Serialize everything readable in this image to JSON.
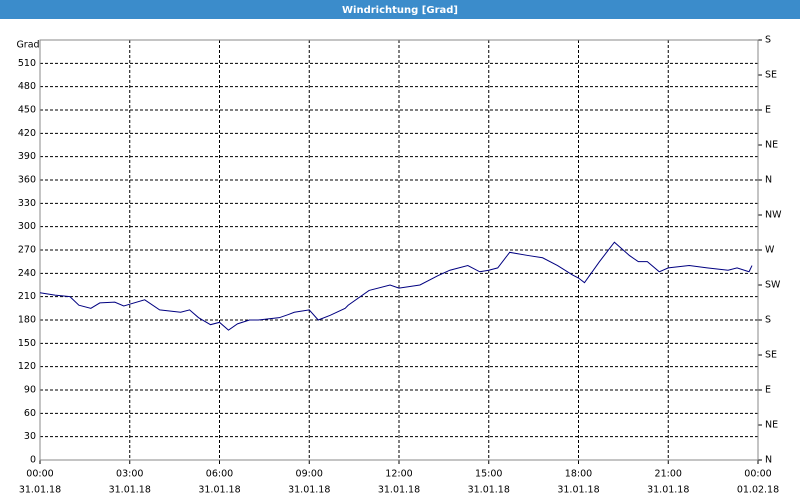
{
  "window_title": "Windrichtung [Grad]",
  "chart_data": {
    "type": "line",
    "ylabel": "Grad",
    "x": [
      0,
      0.5,
      1,
      1.3,
      1.7,
      2,
      2.5,
      2.8,
      3.5,
      4,
      4.7,
      5,
      5.3,
      5.7,
      6,
      6.3,
      6.6,
      7,
      7.3,
      8,
      8.3,
      8.5,
      9,
      9.3,
      9.7,
      10.2,
      10.3,
      11,
      11.7,
      12,
      12.7,
      13.3,
      13.7,
      14.3,
      14.7,
      15,
      15.3,
      15.7,
      16.3,
      16.8,
      17.3,
      17.8,
      18,
      18.2,
      18.7,
      19.2,
      19.7,
      20,
      20.3,
      20.7,
      21,
      21.7,
      22.3,
      23,
      23.3,
      23.7,
      23.8
    ],
    "series": [
      {
        "name": "Windrichtung",
        "color": "#000080",
        "values": [
          215,
          212,
          210,
          199,
          195,
          202,
          203,
          198,
          206,
          193,
          190,
          193,
          183,
          174,
          177,
          167,
          175,
          180,
          180,
          183,
          187,
          190,
          193,
          180,
          186,
          195,
          199,
          218,
          225,
          221,
          225,
          237,
          244,
          250,
          242,
          244,
          247,
          267,
          263,
          260,
          250,
          238,
          234,
          228,
          255,
          280,
          263,
          255,
          255,
          242,
          247,
          250,
          247,
          244,
          247,
          242,
          250
        ]
      }
    ],
    "xlim": [
      0,
      24
    ],
    "xticks": [
      {
        "value": 0,
        "label": "00:00",
        "date": "31.01.18"
      },
      {
        "value": 3,
        "label": "03:00",
        "date": "31.01.18"
      },
      {
        "value": 6,
        "label": "06:00",
        "date": "31.01.18"
      },
      {
        "value": 9,
        "label": "09:00",
        "date": "31.01.18"
      },
      {
        "value": 12,
        "label": "12:00",
        "date": "31.01.18"
      },
      {
        "value": 15,
        "label": "15:00",
        "date": "31.01.18"
      },
      {
        "value": 18,
        "label": "18:00",
        "date": "31.01.18"
      },
      {
        "value": 21,
        "label": "21:00",
        "date": "31.01.18"
      },
      {
        "value": 24,
        "label": "00:00",
        "date": "01.02.18"
      }
    ],
    "ylim": [
      0,
      540
    ],
    "yticks": [
      0,
      30,
      60,
      90,
      120,
      150,
      180,
      210,
      240,
      270,
      300,
      330,
      360,
      390,
      420,
      450,
      480,
      510
    ],
    "y2lim": [
      0,
      540
    ],
    "y2ticks": [
      {
        "value": 0,
        "label": "N"
      },
      {
        "value": 45,
        "label": "NE"
      },
      {
        "value": 90,
        "label": "E"
      },
      {
        "value": 135,
        "label": "SE"
      },
      {
        "value": 180,
        "label": "S"
      },
      {
        "value": 225,
        "label": "SW"
      },
      {
        "value": 270,
        "label": "W"
      },
      {
        "value": 315,
        "label": "NW"
      },
      {
        "value": 360,
        "label": "N"
      },
      {
        "value": 405,
        "label": "NE"
      },
      {
        "value": 450,
        "label": "E"
      },
      {
        "value": 495,
        "label": "SE"
      },
      {
        "value": 540,
        "label": "S"
      }
    ],
    "grid": true
  }
}
